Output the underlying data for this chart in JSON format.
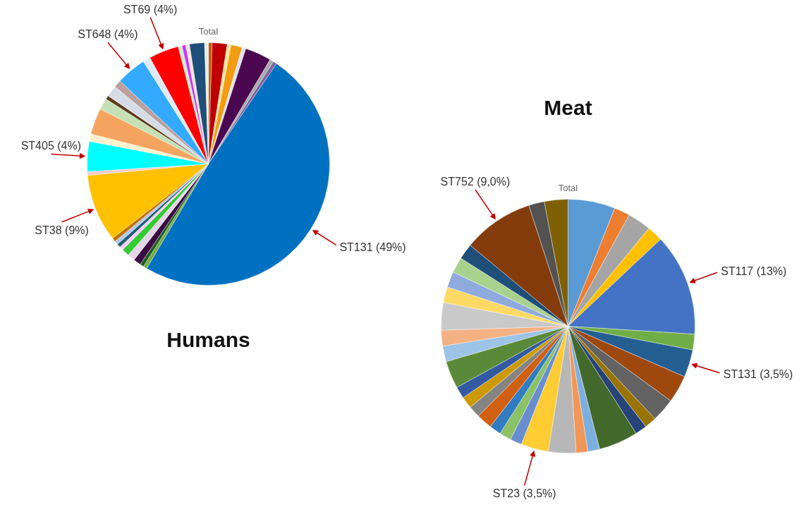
{
  "chart_data": [
    {
      "type": "pie",
      "title": "Humans",
      "subtitle": "Total",
      "categories": [
        null,
        null,
        null,
        null,
        null,
        null,
        null,
        null,
        "ST131 (49%)",
        null,
        null,
        null,
        null,
        null,
        null,
        null,
        null,
        null,
        "ST38 (9%)",
        null,
        "ST405 (4%)",
        null,
        null,
        null,
        null,
        null,
        null,
        "ST648 (4%)",
        null,
        "ST69 (4%)",
        null,
        null,
        null,
        null,
        null
      ],
      "values": [
        0.5,
        2,
        0.5,
        1.5,
        0.5,
        3.5,
        0.5,
        0.5,
        49,
        0.5,
        0.5,
        1,
        1,
        1,
        0.5,
        0.5,
        0.5,
        0.5,
        9,
        0.5,
        4,
        1,
        3.5,
        1.5,
        0.5,
        1.5,
        1,
        4,
        1,
        4,
        0.5,
        0.5,
        0.5,
        2,
        0.5
      ],
      "colors": [
        "#c55a11",
        "#c00000",
        "#ffe699",
        "#f39c12",
        "#dae3f3",
        "#4b0850",
        "#a9a9a9",
        "#8064a2",
        "#0070c0",
        "#70ad47",
        "#1e5c1e",
        "#3b0a45",
        "#e6d5e6",
        "#33cc33",
        "#ffccff",
        "#1f5f7a",
        "#b4c7e7",
        "#c07000",
        "#ffc000",
        "#f4cccc",
        "#00ffff",
        "#fff2cc",
        "#f4a460",
        "#c5e0b4",
        "#5a3a1a",
        "#d6dce5",
        "#bca0a0",
        "#33aaff",
        "#deebf7",
        "#ff0000",
        "#c8f0c8",
        "#cc33ff",
        "#fbe5d6",
        "#1f4e79",
        "#e2f0d9"
      ]
    },
    {
      "type": "pie",
      "title": "Meat",
      "subtitle": "Total",
      "categories": [
        null,
        null,
        null,
        null,
        "ST117 (13%)",
        null,
        "ST131 (3,5%)",
        null,
        null,
        null,
        null,
        null,
        null,
        null,
        null,
        "ST23 (3,5%)",
        null,
        null,
        null,
        null,
        null,
        null,
        null,
        null,
        null,
        null,
        null,
        null,
        null,
        null,
        null,
        "ST752 (9,0%)",
        null,
        null
      ],
      "values": [
        6,
        2,
        3,
        2,
        13,
        2,
        3.5,
        3.5,
        3,
        1.5,
        1.5,
        5,
        1.5,
        1.5,
        3.5,
        3.5,
        1.5,
        1.5,
        1.5,
        2,
        1.5,
        1.5,
        1.5,
        3.5,
        2,
        2,
        3.5,
        2,
        2,
        2,
        2,
        9,
        2,
        3
      ],
      "colors": [
        "#5b9bd5",
        "#ed7d31",
        "#a5a5a5",
        "#ffc000",
        "#4472c4",
        "#70ad47",
        "#255e91",
        "#9e480e",
        "#636363",
        "#997300",
        "#264478",
        "#43682b",
        "#7cafdd",
        "#f1975a",
        "#b7b7b7",
        "#ffcd33",
        "#698ed0",
        "#8cc168",
        "#327dc2",
        "#d26012",
        "#848484",
        "#cc9a00",
        "#335aa1",
        "#5a8a39",
        "#9dc3e6",
        "#f4b183",
        "#c9c9c9",
        "#ffd966",
        "#8faadc",
        "#a9d18e",
        "#1f4e79",
        "#843c0c",
        "#525252",
        "#7f6000"
      ]
    }
  ]
}
